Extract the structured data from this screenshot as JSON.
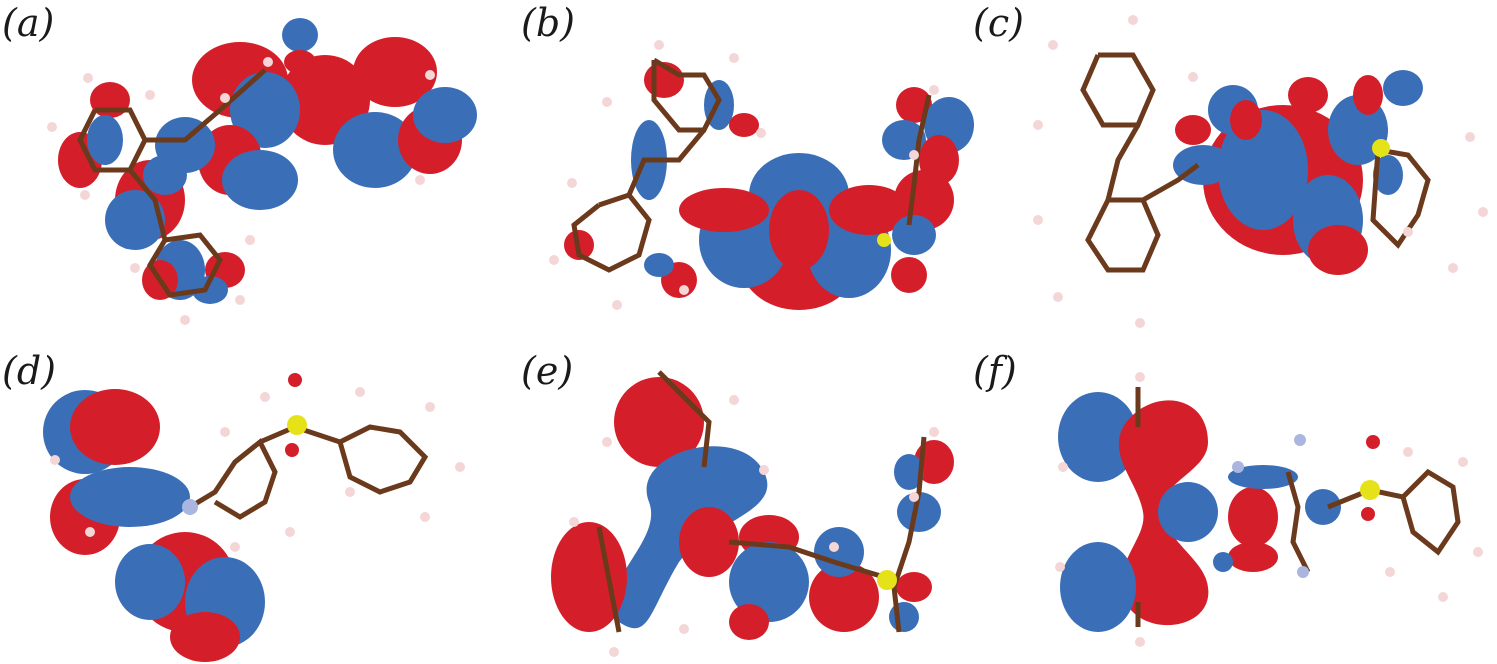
{
  "panels": [
    {
      "label": "(a)"
    },
    {
      "label": "(b)"
    },
    {
      "label": "(c)"
    },
    {
      "label": "(d)"
    },
    {
      "label": "(e)"
    },
    {
      "label": "(f)"
    }
  ],
  "colors": {
    "orbital_positive": "#d41f2a",
    "orbital_negative": "#3a6fb8",
    "carbon": "#6b3a1c",
    "bond": "#6b3a1c",
    "hydrogen": "#f4d6d6",
    "sulfur": "#e6e21a",
    "nitrogen": "#aab6e0",
    "oxygen": "#d41f2a"
  }
}
